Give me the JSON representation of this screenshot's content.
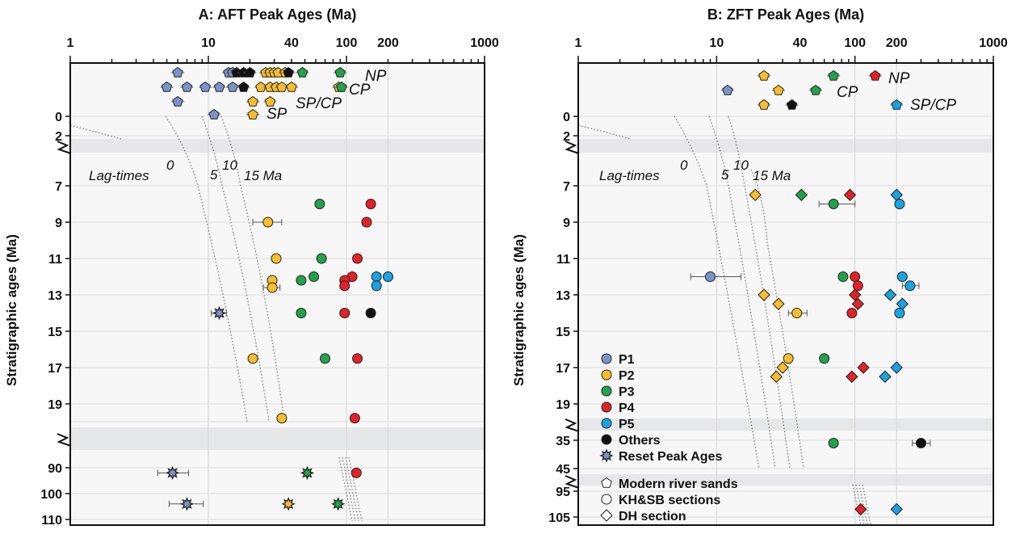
{
  "figure": {
    "legend": {
      "groups": [
        {
          "label": "P1",
          "color": "#7b93c9"
        },
        {
          "label": "P2",
          "color": "#f7bd2b"
        },
        {
          "label": "P3",
          "color": "#22a24a"
        },
        {
          "label": "P4",
          "color": "#e32128"
        },
        {
          "label": "P5",
          "color": "#19a3e3"
        },
        {
          "label": "Others",
          "color": "#111111"
        }
      ],
      "reset_label": "Reset Peak Ages",
      "shapes": [
        {
          "label": "Modern river sands",
          "shape": "pentagon"
        },
        {
          "label": "KH&SB sections",
          "shape": "circle"
        },
        {
          "label": "DH section",
          "shape": "diamond"
        }
      ]
    }
  },
  "chart_data": [
    {
      "type": "scatter",
      "title": "A: AFT Peak Ages (Ma)",
      "xscale": "log",
      "xlim": [
        1,
        1000
      ],
      "x_ticks": [
        "1",
        "10",
        "40",
        "100",
        "200",
        "1000"
      ],
      "ylabel": "Stratigraphic ages (Ma)",
      "y_ticks": [
        "0",
        "2",
        "7",
        "9",
        "11",
        "13",
        "15",
        "17",
        "19",
        "90",
        "100",
        "110"
      ],
      "lag_label": "Lag-times",
      "lag_values": [
        "0",
        "5",
        "10",
        "15 Ma"
      ],
      "modern_labels": [
        "NP",
        "CP",
        "SP/CP",
        "SP"
      ],
      "modern_rows": [
        {
          "label": "NP",
          "points": [
            {
              "x": 6,
              "g": "P1"
            },
            {
              "x": 14,
              "g": "P1"
            },
            {
              "x": 15,
              "g": "P1"
            },
            {
              "x": 16,
              "g": "Others"
            },
            {
              "x": 18,
              "g": "Others"
            },
            {
              "x": 20,
              "g": "Others"
            },
            {
              "x": 26,
              "g": "P2"
            },
            {
              "x": 28,
              "g": "P2"
            },
            {
              "x": 30,
              "g": "P2"
            },
            {
              "x": 32,
              "g": "P2"
            },
            {
              "x": 36,
              "g": "P2"
            },
            {
              "x": 38,
              "g": "Others"
            },
            {
              "x": 48,
              "g": "P3"
            },
            {
              "x": 90,
              "g": "P3"
            }
          ]
        },
        {
          "label": "CP",
          "points": [
            {
              "x": 5,
              "g": "P1"
            },
            {
              "x": 7,
              "g": "P1"
            },
            {
              "x": 9.5,
              "g": "P1"
            },
            {
              "x": 12,
              "g": "P1"
            },
            {
              "x": 15,
              "g": "P1"
            },
            {
              "x": 18,
              "g": "Others"
            },
            {
              "x": 24,
              "g": "P2"
            },
            {
              "x": 28,
              "g": "P2"
            },
            {
              "x": 31,
              "g": "P2"
            },
            {
              "x": 34,
              "g": "P2"
            },
            {
              "x": 40,
              "g": "P2"
            },
            {
              "x": 88,
              "g": "P2"
            },
            {
              "x": 92,
              "g": "P3"
            }
          ]
        },
        {
          "label": "SP",
          "points": [
            {
              "x": 6,
              "g": "P1"
            },
            {
              "x": 21,
              "g": "P2"
            },
            {
              "x": 28,
              "g": "P2"
            }
          ]
        },
        {
          "label": "SP/CP",
          "points": [
            {
              "x": 11,
              "g": "P1"
            },
            {
              "x": 21,
              "g": "P2"
            }
          ]
        }
      ],
      "points": [
        {
          "strat": 8,
          "x": 64,
          "g": "P3"
        },
        {
          "strat": 8,
          "x": 150,
          "g": "P4"
        },
        {
          "strat": 9,
          "x": 27,
          "g": "P2",
          "err": [
            21,
            34
          ]
        },
        {
          "strat": 9,
          "x": 140,
          "g": "P4"
        },
        {
          "strat": 11,
          "x": 31,
          "g": "P2"
        },
        {
          "strat": 11,
          "x": 66,
          "g": "P3"
        },
        {
          "strat": 11,
          "x": 120,
          "g": "P4"
        },
        {
          "strat": 12,
          "x": 58,
          "g": "P3"
        },
        {
          "strat": 12,
          "x": 110,
          "g": "P4"
        },
        {
          "strat": 12,
          "x": 165,
          "g": "P5"
        },
        {
          "strat": 12,
          "x": 200,
          "g": "P5"
        },
        {
          "strat": 12.2,
          "x": 29,
          "g": "P2"
        },
        {
          "strat": 12.2,
          "x": 47,
          "g": "P3"
        },
        {
          "strat": 12.2,
          "x": 97,
          "g": "P4"
        },
        {
          "strat": 12.5,
          "x": 97,
          "g": "P4"
        },
        {
          "strat": 12.5,
          "x": 165,
          "g": "P5"
        },
        {
          "strat": 12.6,
          "x": 29,
          "g": "P2",
          "err": [
            25,
            33
          ]
        },
        {
          "strat": 14,
          "x": 47,
          "g": "P3"
        },
        {
          "strat": 14,
          "x": 97,
          "g": "P4"
        },
        {
          "strat": 14,
          "x": 150,
          "g": "Others"
        },
        {
          "strat": 16.5,
          "x": 21,
          "g": "P2"
        },
        {
          "strat": 16.5,
          "x": 70,
          "g": "P3"
        },
        {
          "strat": 16.5,
          "x": 120,
          "g": "P4"
        },
        {
          "strat": 19.8,
          "x": 34,
          "g": "P2"
        },
        {
          "strat": 19.8,
          "x": 115,
          "g": "P4"
        }
      ],
      "reset_points": [
        {
          "strat": 14,
          "x": 12,
          "g": "P1",
          "err": [
            10.5,
            13.5
          ]
        },
        {
          "strat": 92,
          "x": 5.5,
          "g": "P1",
          "err": [
            4.3,
            7.2
          ]
        },
        {
          "strat": 92,
          "x": 52,
          "g": "P3"
        },
        {
          "strat": 104,
          "x": 7,
          "g": "P1",
          "err": [
            5.2,
            9.2
          ]
        },
        {
          "strat": 104,
          "x": 38,
          "g": "P2"
        },
        {
          "strat": 104,
          "x": 87,
          "g": "P3"
        }
      ],
      "extra_points": [
        {
          "strat": 92,
          "x": 118,
          "g": "P4"
        }
      ]
    },
    {
      "type": "scatter",
      "title": "B: ZFT Peak Ages (Ma)",
      "xscale": "log",
      "xlim": [
        1,
        1000
      ],
      "x_ticks": [
        "1",
        "10",
        "40",
        "100",
        "200",
        "1000"
      ],
      "ylabel": "Stratigraphic ages (Ma)",
      "y_ticks": [
        "0",
        "2",
        "7",
        "9",
        "11",
        "13",
        "15",
        "17",
        "19",
        "35",
        "45",
        "95",
        "105"
      ],
      "lag_label": "Lag-times",
      "lag_values": [
        "0",
        "5",
        "10",
        "15 Ma"
      ],
      "modern_labels": [
        "NP",
        "CP",
        "SP/CP"
      ],
      "modern_rows": [
        {
          "label": "NP",
          "points": [
            {
              "x": 22,
              "g": "P2"
            },
            {
              "x": 70,
              "g": "P3"
            },
            {
              "x": 140,
              "g": "P4"
            }
          ]
        },
        {
          "label": "CP",
          "points": [
            {
              "x": 12,
              "g": "P1"
            },
            {
              "x": 28,
              "g": "P2"
            },
            {
              "x": 52,
              "g": "P3"
            }
          ]
        },
        {
          "label": "SP/CP",
          "points": [
            {
              "x": 22,
              "g": "P2"
            },
            {
              "x": 35,
              "g": "Others"
            },
            {
              "x": 200,
              "g": "P5"
            }
          ]
        }
      ],
      "points": [
        {
          "strat": 7.5,
          "x": 19,
          "g": "P2",
          "shape": "diamond"
        },
        {
          "strat": 7.5,
          "x": 41,
          "g": "P3",
          "shape": "diamond"
        },
        {
          "strat": 7.5,
          "x": 92,
          "g": "P4",
          "shape": "diamond"
        },
        {
          "strat": 7.5,
          "x": 200,
          "g": "P5",
          "shape": "diamond"
        },
        {
          "strat": 8,
          "x": 70,
          "g": "P3",
          "err": [
            55,
            100
          ]
        },
        {
          "strat": 8,
          "x": 210,
          "g": "P5"
        },
        {
          "strat": 12,
          "x": 9,
          "g": "P1",
          "err": [
            6.5,
            15
          ]
        },
        {
          "strat": 12,
          "x": 82,
          "g": "P3"
        },
        {
          "strat": 12,
          "x": 100,
          "g": "P4"
        },
        {
          "strat": 12,
          "x": 220,
          "g": "P5"
        },
        {
          "strat": 12.5,
          "x": 105,
          "g": "P4"
        },
        {
          "strat": 12.5,
          "x": 250,
          "g": "P5",
          "err": [
            220,
            290
          ]
        },
        {
          "strat": 13,
          "x": 22,
          "g": "P2",
          "shape": "diamond"
        },
        {
          "strat": 13,
          "x": 100,
          "g": "P4",
          "shape": "diamond"
        },
        {
          "strat": 13,
          "x": 180,
          "g": "P5",
          "shape": "diamond"
        },
        {
          "strat": 13.5,
          "x": 28,
          "g": "P2",
          "shape": "diamond"
        },
        {
          "strat": 13.5,
          "x": 105,
          "g": "P4",
          "shape": "diamond"
        },
        {
          "strat": 13.5,
          "x": 220,
          "g": "P5",
          "shape": "diamond"
        },
        {
          "strat": 14,
          "x": 38,
          "g": "P2",
          "err": [
            33,
            45
          ]
        },
        {
          "strat": 14,
          "x": 95,
          "g": "P4"
        },
        {
          "strat": 14,
          "x": 210,
          "g": "P5"
        },
        {
          "strat": 16.5,
          "x": 33,
          "g": "P2"
        },
        {
          "strat": 16.5,
          "x": 60,
          "g": "P3"
        },
        {
          "strat": 17,
          "x": 30,
          "g": "P2",
          "shape": "diamond"
        },
        {
          "strat": 17,
          "x": 115,
          "g": "P4",
          "shape": "diamond"
        },
        {
          "strat": 17,
          "x": 200,
          "g": "P5",
          "shape": "diamond"
        },
        {
          "strat": 17.5,
          "x": 27,
          "g": "P2",
          "shape": "diamond"
        },
        {
          "strat": 17.5,
          "x": 95,
          "g": "P4",
          "shape": "diamond"
        },
        {
          "strat": 17.5,
          "x": 165,
          "g": "P5",
          "shape": "diamond"
        },
        {
          "strat": 36,
          "x": 70,
          "g": "P3"
        },
        {
          "strat": 36,
          "x": 300,
          "g": "Others",
          "err": [
            260,
            350
          ]
        },
        {
          "strat": 102,
          "x": 110,
          "g": "P4",
          "shape": "diamond"
        },
        {
          "strat": 102,
          "x": 200,
          "g": "P5",
          "shape": "diamond"
        }
      ]
    }
  ]
}
